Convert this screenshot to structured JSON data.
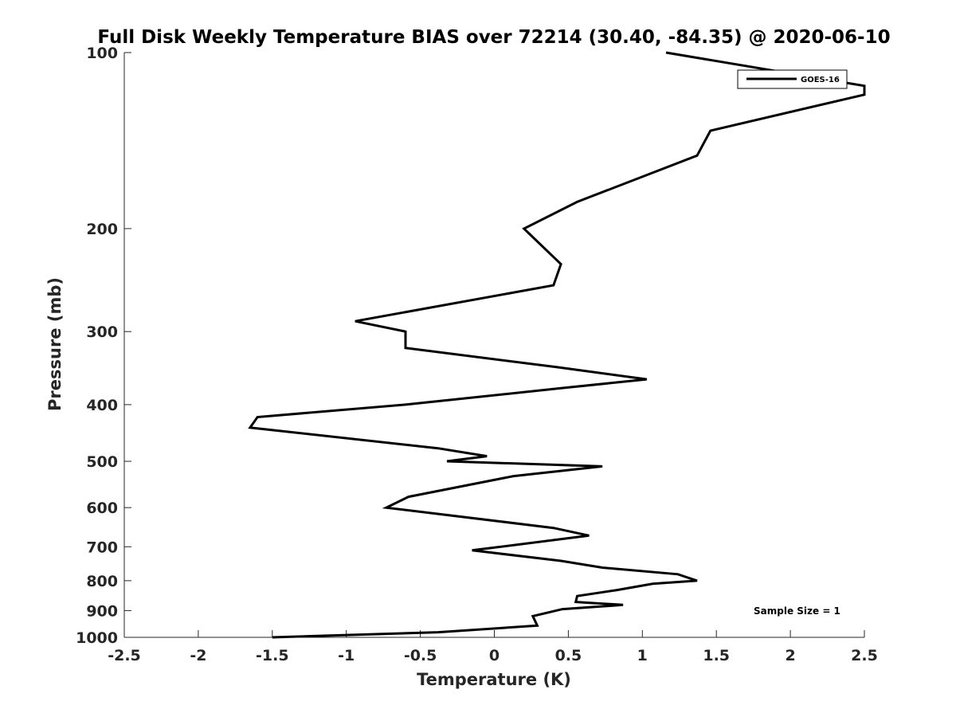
{
  "chart_data": {
    "type": "line",
    "title": "Full Disk Weekly Temperature BIAS over 72214 (30.40, -84.35) @ 2020-06-10",
    "xlabel": "Temperature (K)",
    "ylabel": "Pressure (mb)",
    "xlim": [
      -2.5,
      2.5
    ],
    "ylim": [
      100,
      1000
    ],
    "y_scale": "log",
    "y_reversed": true,
    "grid": false,
    "legend_position": "top-right",
    "x_ticks": [
      "-2.5",
      "-2",
      "-1.5",
      "-1",
      "-0.5",
      "0",
      "0.5",
      "1",
      "1.5",
      "2",
      "2.5"
    ],
    "y_ticks": [
      "100",
      "200",
      "300",
      "400",
      "500",
      "600",
      "700",
      "800",
      "900",
      "1000"
    ],
    "annotation": "Sample Size = 1",
    "series": [
      {
        "name": "GOES-16",
        "color": "#000000",
        "points": [
          [
            1.16,
            100
          ],
          [
            2.5,
            114
          ],
          [
            2.5,
            118
          ],
          [
            1.46,
            136
          ],
          [
            1.37,
            150
          ],
          [
            0.56,
            180
          ],
          [
            0.2,
            200
          ],
          [
            0.45,
            230
          ],
          [
            0.4,
            250
          ],
          [
            -0.94,
            288
          ],
          [
            -0.6,
            300
          ],
          [
            -0.6,
            320
          ],
          [
            0.42,
            345
          ],
          [
            1.03,
            362
          ],
          [
            0.45,
            375
          ],
          [
            -0.6,
            400
          ],
          [
            -1.6,
            420
          ],
          [
            -1.65,
            438
          ],
          [
            -0.38,
            475
          ],
          [
            -0.05,
            490
          ],
          [
            -0.32,
            500
          ],
          [
            0.73,
            510
          ],
          [
            0.13,
            530
          ],
          [
            -0.58,
            575
          ],
          [
            -0.73,
            600
          ],
          [
            0.4,
            650
          ],
          [
            0.64,
            670
          ],
          [
            -0.15,
            710
          ],
          [
            0.45,
            740
          ],
          [
            0.73,
            760
          ],
          [
            1.24,
            780
          ],
          [
            1.37,
            800
          ],
          [
            1.07,
            810
          ],
          [
            0.83,
            830
          ],
          [
            0.56,
            850
          ],
          [
            0.55,
            870
          ],
          [
            0.87,
            880
          ],
          [
            0.46,
            895
          ],
          [
            0.26,
            920
          ],
          [
            0.29,
            955
          ],
          [
            -0.38,
            980
          ],
          [
            -1.5,
            1000
          ]
        ]
      }
    ]
  }
}
